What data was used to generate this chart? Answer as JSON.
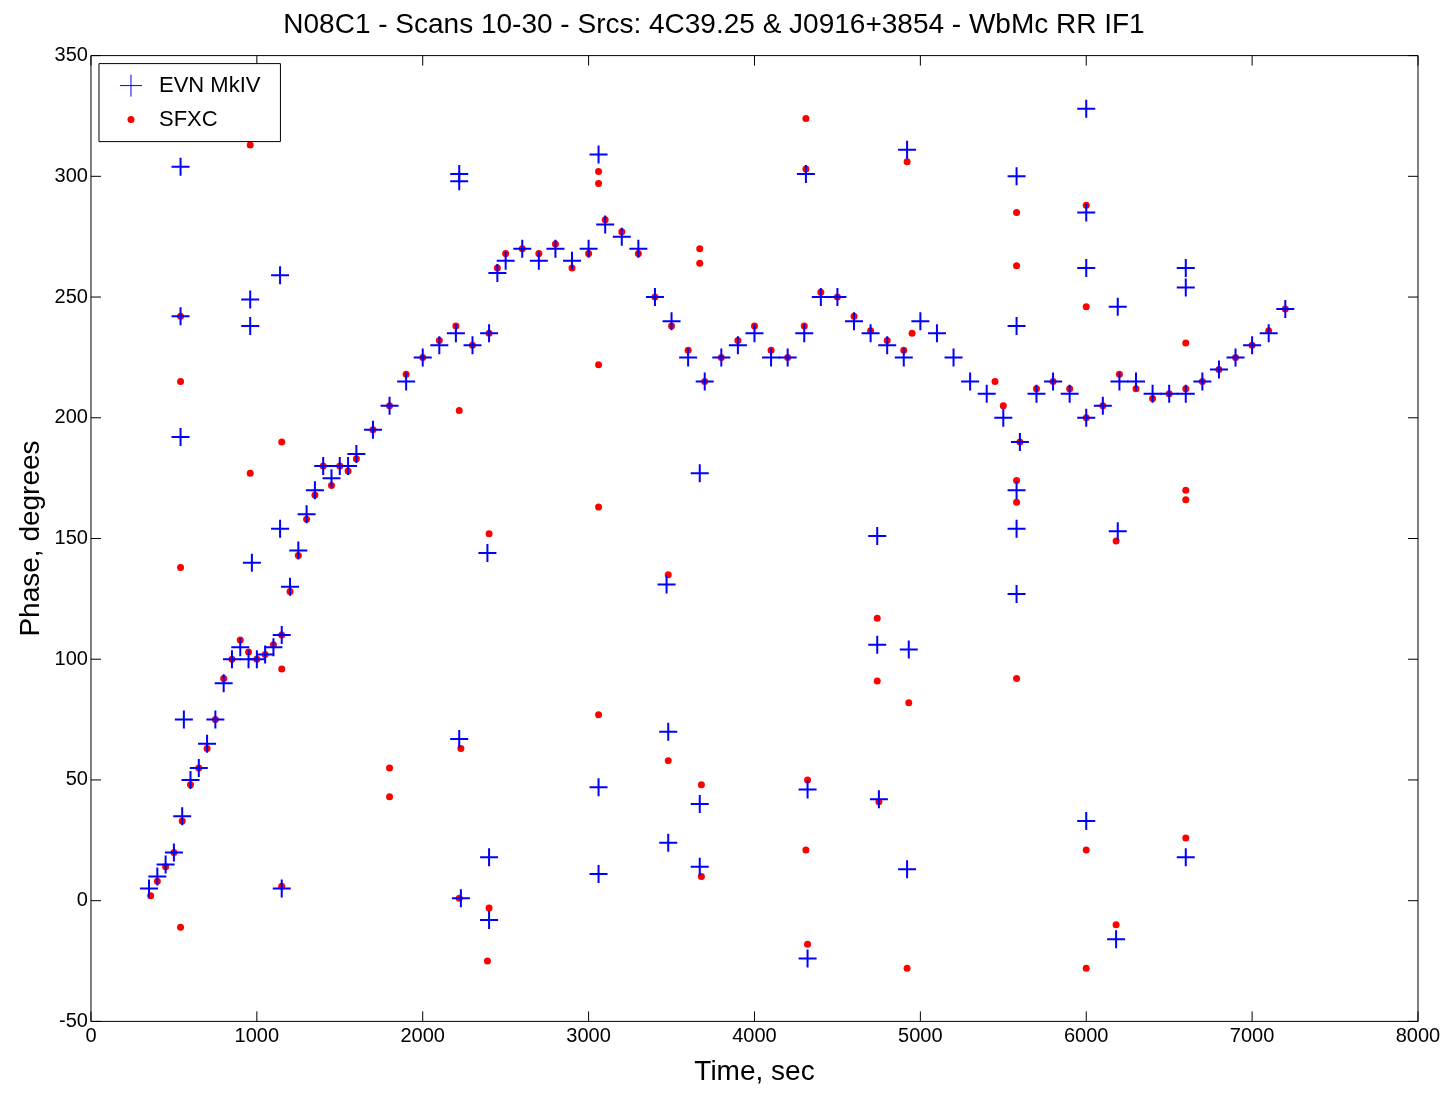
{
  "chart_data": {
    "type": "scatter",
    "title": "N08C1 - Scans 10-30 - Srcs: 4C39.25 & J0916+3854 - WbMc RR IF1",
    "xlabel": "Time, sec",
    "ylabel": "Phase, degrees",
    "xlim": [
      0,
      8000
    ],
    "xticks": [
      0,
      1000,
      2000,
      3000,
      4000,
      5000,
      6000,
      7000,
      8000
    ],
    "ylim": [
      -50,
      350
    ],
    "yticks": [
      -50,
      0,
      50,
      100,
      150,
      200,
      250,
      300,
      350
    ],
    "legend": "top left",
    "series": [
      {
        "name": "EVN MkIV",
        "color": "#0000ff",
        "marker": "cross",
        "x": [
          350,
          400,
          450,
          500,
          550,
          600,
          650,
          700,
          750,
          800,
          850,
          900,
          950,
          1000,
          1050,
          1100,
          1150,
          1200,
          1250,
          1300,
          1350,
          1400,
          1450,
          1500,
          1550,
          1600,
          1700,
          1800,
          1900,
          2000,
          2100,
          2200,
          2300,
          2400,
          2450,
          2500,
          2600,
          2700,
          2800,
          2900,
          3000,
          3100,
          3200,
          3300,
          3400,
          3500,
          3600,
          3700,
          3800,
          3900,
          4000,
          4100,
          4200,
          4300,
          4400,
          4500,
          4600,
          4700,
          4800,
          4900,
          5000,
          5100,
          5200,
          5300,
          5400,
          5500,
          5600,
          5700,
          5800,
          5900,
          6000,
          6100,
          6200,
          6300,
          6400,
          6500,
          6600,
          6700,
          6800,
          6900,
          7000,
          7100,
          7200,
          540,
          540,
          540,
          560,
          960,
          960,
          970,
          1140,
          1140,
          1150,
          2220,
          2220,
          2220,
          2230,
          2390,
          2400,
          2400,
          3060,
          3060,
          3060,
          3470,
          3480,
          3480,
          3670,
          3670,
          3670,
          4310,
          4320,
          4320,
          4740,
          4740,
          4750,
          4920,
          4930,
          4920,
          5580,
          5580,
          5580,
          5580,
          5580,
          6000,
          6000,
          6000,
          6000,
          6190,
          6190,
          6180,
          6600,
          6600,
          6600
        ],
        "values": [
          5,
          10,
          15,
          20,
          35,
          50,
          55,
          65,
          75,
          90,
          100,
          105,
          100,
          100,
          102,
          105,
          110,
          130,
          145,
          160,
          170,
          180,
          175,
          180,
          180,
          185,
          195,
          205,
          215,
          225,
          230,
          235,
          230,
          235,
          260,
          265,
          270,
          265,
          270,
          265,
          270,
          280,
          275,
          270,
          250,
          240,
          225,
          215,
          225,
          230,
          235,
          225,
          225,
          235,
          250,
          250,
          240,
          235,
          230,
          225,
          240,
          235,
          225,
          215,
          210,
          200,
          190,
          210,
          215,
          210,
          200,
          205,
          215,
          215,
          210,
          210,
          210,
          215,
          220,
          225,
          230,
          235,
          245,
          304,
          242,
          192,
          75,
          249,
          238,
          140,
          259,
          154,
          5,
          301,
          298,
          67,
          1,
          144,
          18,
          -8,
          309,
          47,
          11,
          131,
          70,
          24,
          177,
          40,
          14,
          301,
          46,
          -24,
          151,
          106,
          42,
          311,
          104,
          13,
          300,
          238,
          170,
          154,
          127,
          328,
          285,
          262,
          33,
          246,
          153,
          -16,
          262,
          254,
          18
        ]
      },
      {
        "name": "SFXC",
        "color": "#ff0000",
        "marker": "circle",
        "x": [
          360,
          400,
          450,
          500,
          550,
          600,
          650,
          700,
          750,
          800,
          850,
          900,
          950,
          1000,
          1050,
          1100,
          1150,
          1200,
          1250,
          1300,
          1350,
          1400,
          1450,
          1500,
          1550,
          1600,
          1700,
          1800,
          1900,
          2000,
          2100,
          2200,
          2300,
          2400,
          2450,
          2500,
          2600,
          2700,
          2800,
          2900,
          3000,
          3100,
          3200,
          3300,
          3400,
          3500,
          3600,
          3700,
          3800,
          3900,
          4000,
          4100,
          4200,
          4300,
          4400,
          4500,
          4600,
          4700,
          4800,
          4900,
          4950,
          5450,
          5500,
          5600,
          5700,
          5800,
          5900,
          6000,
          6100,
          6200,
          6300,
          6400,
          6500,
          6600,
          6700,
          6800,
          6900,
          7000,
          7100,
          7200,
          540,
          540,
          540,
          540,
          960,
          960,
          1150,
          1150,
          1150,
          1800,
          1800,
          2220,
          2230,
          2220,
          2400,
          2400,
          2390,
          3060,
          3060,
          3060,
          3060,
          3060,
          3480,
          3480,
          3670,
          3670,
          3680,
          3680,
          4310,
          4310,
          4320,
          4310,
          4320,
          4740,
          4740,
          4750,
          4920,
          4930,
          4920,
          5580,
          5580,
          5580,
          5580,
          5580,
          6000,
          6000,
          6000,
          6000,
          6180,
          6180,
          6600,
          6600,
          6600,
          6600
        ],
        "values": [
          2,
          8,
          14,
          20,
          33,
          48,
          55,
          63,
          75,
          92,
          100,
          108,
          103,
          100,
          102,
          106,
          110,
          128,
          143,
          158,
          168,
          180,
          172,
          180,
          178,
          183,
          195,
          205,
          218,
          225,
          232,
          238,
          230,
          235,
          262,
          268,
          270,
          268,
          272,
          262,
          268,
          282,
          277,
          268,
          250,
          238,
          228,
          215,
          225,
          232,
          238,
          228,
          225,
          238,
          252,
          250,
          242,
          236,
          232,
          228,
          235,
          215,
          205,
          190,
          212,
          215,
          212,
          200,
          205,
          218,
          212,
          208,
          210,
          212,
          215,
          220,
          225,
          230,
          236,
          245,
          242,
          215,
          138,
          -11,
          313,
          177,
          190,
          96,
          6,
          55,
          43,
          203,
          63,
          1,
          152,
          -3,
          -25,
          302,
          297,
          222,
          163,
          77,
          135,
          58,
          270,
          264,
          48,
          10,
          324,
          303,
          50,
          21,
          -18,
          117,
          91,
          41,
          306,
          82,
          -28,
          285,
          263,
          174,
          165,
          92,
          288,
          246,
          21,
          -28,
          149,
          -10,
          231,
          170,
          166,
          26
        ]
      }
    ]
  }
}
